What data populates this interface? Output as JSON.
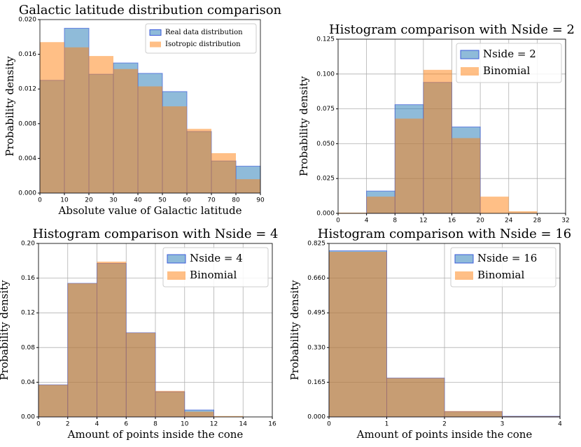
{
  "chart_data": [
    {
      "type": "histogram",
      "title": "Galactic latitude distribution comparison",
      "xlabel": "Absolute value of Galactic latitude",
      "ylabel": "Probability density",
      "bins": [
        0,
        10,
        20,
        30,
        40,
        50,
        60,
        70,
        80,
        90
      ],
      "series": [
        {
          "name": "Real data distribution",
          "color": "#1f77b4",
          "values": [
            0.013,
            0.019,
            0.0137,
            0.015,
            0.0138,
            0.0117,
            0.0071,
            0.0037,
            0.0031
          ]
        },
        {
          "name": "Isotropic distribution",
          "color": "#ff7f0e",
          "values": [
            0.0174,
            0.0168,
            0.0158,
            0.0143,
            0.0123,
            0.01,
            0.0074,
            0.0046,
            0.0016
          ]
        }
      ],
      "xlim": [
        0,
        90
      ],
      "xticks": [
        0,
        10,
        20,
        30,
        40,
        50,
        60,
        70,
        80,
        90
      ],
      "ylim": [
        0,
        0.02
      ],
      "yticks": [
        {
          "value": 0,
          "label": "0.000"
        },
        {
          "value": 0.004,
          "label": "0.004"
        },
        {
          "value": 0.008,
          "label": "0.008"
        },
        {
          "value": 0.012,
          "label": "0.012"
        },
        {
          "value": 0.016,
          "label": "0.016"
        },
        {
          "value": 0.02,
          "label": "0.020"
        }
      ],
      "grid": false,
      "legend": "upper right"
    },
    {
      "type": "histogram",
      "title": "Histogram comparison with Nside = 2",
      "ylabel": "Probability density",
      "bins": [
        0,
        4,
        8,
        12,
        16,
        20,
        24,
        28,
        32
      ],
      "series": [
        {
          "name": "Nside = 2",
          "color": "#1f77b4",
          "values": [
            0,
            0.016,
            0.078,
            0.094,
            0.062,
            0,
            0,
            0
          ]
        },
        {
          "name": "Binomial",
          "color": "#ff7f0e",
          "values": [
            0.0005,
            0.012,
            0.068,
            0.103,
            0.054,
            0.012,
            0.0015,
            0
          ]
        }
      ],
      "xlim": [
        0,
        32
      ],
      "xticks": [
        0,
        4,
        8,
        12,
        16,
        20,
        24,
        28,
        32
      ],
      "ylim": [
        0,
        0.125
      ],
      "yticks": [
        {
          "value": 0,
          "label": "0.000"
        },
        {
          "value": 0.025,
          "label": "0.025"
        },
        {
          "value": 0.05,
          "label": "0.050"
        },
        {
          "value": 0.075,
          "label": "0.075"
        },
        {
          "value": 0.1,
          "label": "0.100"
        },
        {
          "value": 0.125,
          "label": "0.125"
        }
      ],
      "grid": true,
      "legend": "upper right"
    },
    {
      "type": "histogram",
      "title": "Histogram comparison with Nside = 4",
      "xlabel": "Amount of points inside the cone",
      "ylabel": "Probability density",
      "bins": [
        0,
        2,
        4,
        6,
        8,
        10,
        12,
        14,
        16
      ],
      "series": [
        {
          "name": "Nside = 4",
          "color": "#1f77b4",
          "values": [
            0.037,
            0.154,
            0.177,
            0.097,
            0.029,
            0.008,
            0,
            0
          ]
        },
        {
          "name": "Binomial",
          "color": "#ff7f0e",
          "values": [
            0.037,
            0.154,
            0.179,
            0.097,
            0.03,
            0.006,
            0.001,
            0
          ]
        }
      ],
      "xlim": [
        0,
        16
      ],
      "xticks": [
        0,
        2,
        4,
        6,
        8,
        10,
        12,
        14,
        16
      ],
      "ylim": [
        0,
        0.2
      ],
      "yticks": [
        {
          "value": 0,
          "label": "0.00"
        },
        {
          "value": 0.04,
          "label": "0.04"
        },
        {
          "value": 0.08,
          "label": "0.08"
        },
        {
          "value": 0.12,
          "label": "0.12"
        },
        {
          "value": 0.16,
          "label": "0.16"
        },
        {
          "value": 0.2,
          "label": "0.20"
        }
      ],
      "grid": true,
      "legend": "upper right"
    },
    {
      "type": "histogram",
      "title": "Histogram comparison with Nside = 16",
      "xlabel": "Amount of points inside the cone",
      "ylabel": "Probability density",
      "bins": [
        0,
        1,
        2,
        3,
        4
      ],
      "series": [
        {
          "name": "Nside = 16",
          "color": "#1f77b4",
          "values": [
            0.79,
            0.185,
            0.025,
            0.003
          ]
        },
        {
          "name": "Binomial",
          "color": "#ff7f0e",
          "values": [
            0.785,
            0.185,
            0.028,
            0.003
          ]
        }
      ],
      "xlim": [
        0,
        4
      ],
      "xticks": [
        0,
        1,
        2,
        3,
        4
      ],
      "ylim": [
        0,
        0.825
      ],
      "yticks": [
        {
          "value": 0,
          "label": "0.000"
        },
        {
          "value": 0.165,
          "label": "0.165"
        },
        {
          "value": 0.33,
          "label": "0.330"
        },
        {
          "value": 0.495,
          "label": "0.495"
        },
        {
          "value": 0.66,
          "label": "0.660"
        },
        {
          "value": 0.825,
          "label": "0.825"
        }
      ],
      "grid": true,
      "legend": "upper right"
    }
  ]
}
